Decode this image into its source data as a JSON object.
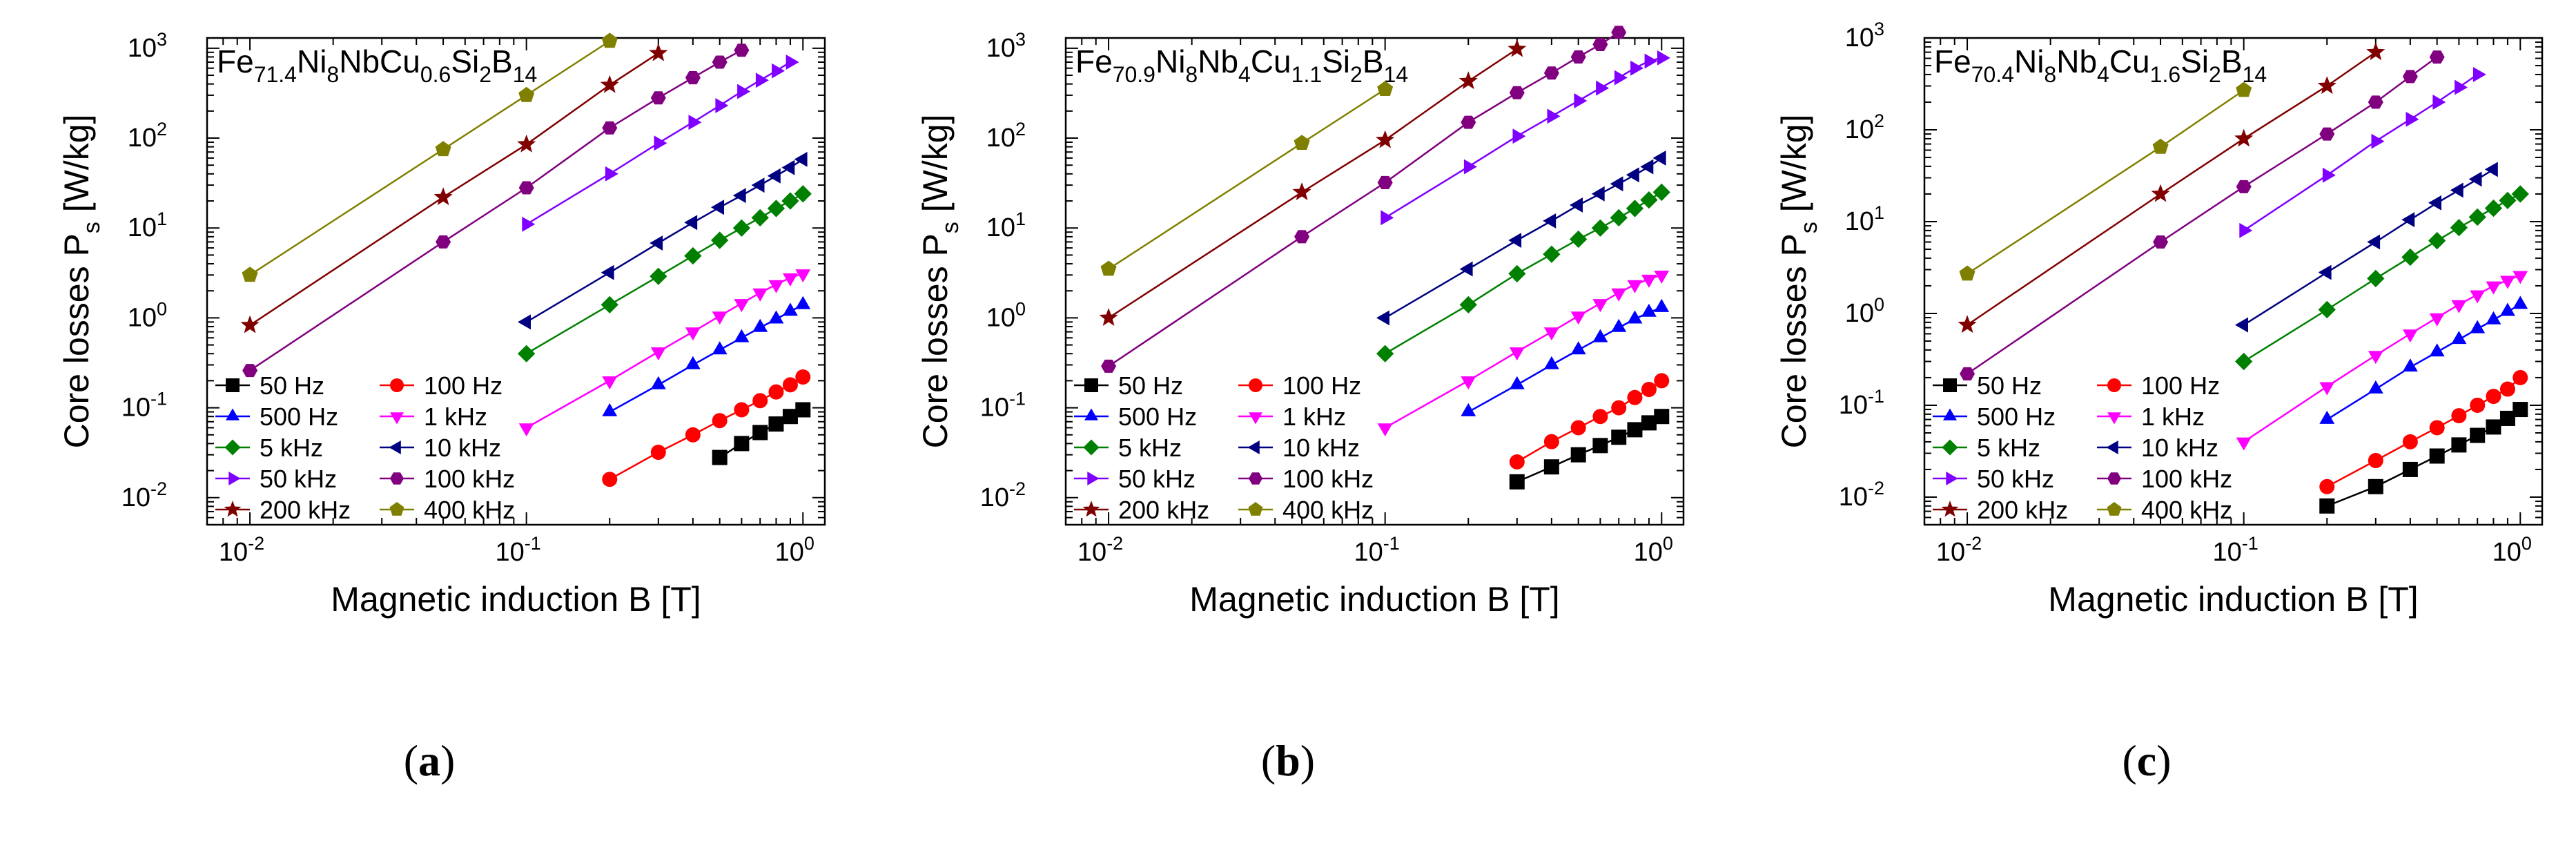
{
  "figure": {
    "captions": [
      {
        "open": "(",
        "label": "a",
        "close": ")"
      },
      {
        "open": "(",
        "label": "b",
        "close": ")"
      },
      {
        "open": "(",
        "label": "c",
        "close": ")"
      }
    ]
  },
  "legend_labels": [
    "50 Hz",
    "100 Hz",
    "500 Hz",
    "1 kHz",
    "5 kHz",
    "10 kHz",
    "50 kHz",
    "100 kHz",
    "200 kHz",
    "400 kHz"
  ],
  "series_styles": [
    {
      "color": "#000000",
      "marker": "square"
    },
    {
      "color": "#ff0000",
      "marker": "circle"
    },
    {
      "color": "#0000ff",
      "marker": "triangle-up"
    },
    {
      "color": "#ff00ff",
      "marker": "triangle-down"
    },
    {
      "color": "#008000",
      "marker": "diamond"
    },
    {
      "color": "#000080",
      "marker": "triangle-left"
    },
    {
      "color": "#8000ff",
      "marker": "triangle-right"
    },
    {
      "color": "#800080",
      "marker": "hexagon"
    },
    {
      "color": "#800000",
      "marker": "star"
    },
    {
      "color": "#808000",
      "marker": "pentagon"
    }
  ],
  "chart_data": [
    {
      "type": "scatter",
      "composition": [
        "Fe",
        "71.4",
        "Ni",
        "8",
        "Nb",
        "Cu",
        "0.6",
        "Si",
        "2",
        "B",
        "14"
      ],
      "xlabel": "Magnetic induction B [T]",
      "ylabel": "Core losses P",
      "ylabel_sub": "s",
      "ylabel_unit": "[W/kg]",
      "x_scale": "log",
      "y_scale": "log",
      "xlim": [
        0.007,
        1.2
      ],
      "ylim": [
        0.005,
        1300
      ],
      "legend_position": "bottom-left",
      "x_ticks": [
        {
          "base": "10",
          "exp": "-2"
        },
        {
          "base": "10",
          "exp": "-1"
        },
        {
          "base": "10",
          "exp": "0"
        }
      ],
      "y_ticks": [
        {
          "base": "10",
          "exp": "-2"
        },
        {
          "base": "10",
          "exp": "-1"
        },
        {
          "base": "10",
          "exp": "0"
        },
        {
          "base": "10",
          "exp": "1"
        },
        {
          "base": "10",
          "exp": "2"
        },
        {
          "base": "10",
          "exp": "3"
        }
      ],
      "series": [
        {
          "name": "50 Hz",
          "x": [
            0.5,
            0.6,
            0.7,
            0.8,
            0.9,
            1.0
          ],
          "y": [
            0.028,
            0.04,
            0.053,
            0.066,
            0.08,
            0.095
          ]
        },
        {
          "name": "100 Hz",
          "x": [
            0.2,
            0.3,
            0.4,
            0.5,
            0.6,
            0.7,
            0.8,
            0.9,
            1.0
          ],
          "y": [
            0.016,
            0.032,
            0.05,
            0.072,
            0.095,
            0.12,
            0.15,
            0.18,
            0.22
          ]
        },
        {
          "name": "500 Hz",
          "x": [
            0.2,
            0.3,
            0.4,
            0.5,
            0.6,
            0.7,
            0.8,
            0.9,
            1.0
          ],
          "y": [
            0.09,
            0.18,
            0.3,
            0.44,
            0.6,
            0.78,
            0.97,
            1.18,
            1.4
          ]
        },
        {
          "name": "1 kHz",
          "x": [
            0.1,
            0.2,
            0.3,
            0.4,
            0.5,
            0.6,
            0.7,
            0.8,
            0.9,
            1.0
          ],
          "y": [
            0.06,
            0.2,
            0.42,
            0.7,
            1.05,
            1.45,
            1.9,
            2.35,
            2.8,
            3.1
          ]
        },
        {
          "name": "5 kHz",
          "x": [
            0.1,
            0.2,
            0.3,
            0.4,
            0.5,
            0.6,
            0.7,
            0.8,
            0.9,
            1.0
          ],
          "y": [
            0.4,
            1.4,
            2.9,
            4.9,
            7.3,
            10,
            13,
            16.5,
            20,
            24
          ]
        },
        {
          "name": "10 kHz",
          "x": [
            0.1,
            0.2,
            0.3,
            0.4,
            0.5,
            0.6,
            0.7,
            0.8,
            0.9,
            1.0
          ],
          "y": [
            0.9,
            3.2,
            6.8,
            11.5,
            17,
            23,
            30,
            38,
            47,
            58
          ]
        },
        {
          "name": "50 kHz",
          "x": [
            0.1,
            0.2,
            0.3,
            0.4,
            0.5,
            0.6,
            0.7,
            0.8,
            0.9
          ],
          "y": [
            11,
            40,
            88,
            150,
            230,
            330,
            440,
            560,
            700
          ]
        },
        {
          "name": "100 kHz",
          "x": [
            0.01,
            0.05,
            0.1,
            0.2,
            0.3,
            0.4,
            0.5,
            0.6
          ],
          "y": [
            0.26,
            7,
            28,
            130,
            280,
            470,
            700,
            950
          ]
        },
        {
          "name": "200 kHz",
          "x": [
            0.01,
            0.05,
            0.1,
            0.2,
            0.3
          ],
          "y": [
            0.83,
            22,
            85,
            390,
            880
          ]
        },
        {
          "name": "400 kHz",
          "x": [
            0.01,
            0.05,
            0.1,
            0.2
          ],
          "y": [
            3,
            75,
            300,
            1200
          ]
        }
      ]
    },
    {
      "type": "scatter",
      "composition": [
        "Fe",
        "70.9",
        "Ni",
        "8",
        "Nb",
        "4",
        "Cu",
        "1.1",
        "Si",
        "2",
        "B",
        "14"
      ],
      "xlabel": "Magnetic induction B [T]",
      "ylabel": "Core losses P",
      "ylabel_sub": "s",
      "ylabel_unit": "[W/kg]",
      "x_scale": "log",
      "y_scale": "log",
      "xlim": [
        0.007,
        1.2
      ],
      "ylim": [
        0.005,
        1300
      ],
      "legend_position": "bottom-left",
      "x_ticks": [
        {
          "base": "10",
          "exp": "-2"
        },
        {
          "base": "10",
          "exp": "-1"
        },
        {
          "base": "10",
          "exp": "0"
        }
      ],
      "y_ticks": [
        {
          "base": "10",
          "exp": "-2"
        },
        {
          "base": "10",
          "exp": "-1"
        },
        {
          "base": "10",
          "exp": "0"
        },
        {
          "base": "10",
          "exp": "1"
        },
        {
          "base": "10",
          "exp": "2"
        },
        {
          "base": "10",
          "exp": "3"
        }
      ],
      "series": [
        {
          "name": "50 Hz",
          "x": [
            0.3,
            0.4,
            0.5,
            0.6,
            0.7,
            0.8,
            0.9,
            1.0
          ],
          "y": [
            0.015,
            0.022,
            0.03,
            0.038,
            0.047,
            0.057,
            0.068,
            0.08
          ]
        },
        {
          "name": "100 Hz",
          "x": [
            0.3,
            0.4,
            0.5,
            0.6,
            0.7,
            0.8,
            0.9,
            1.0
          ],
          "y": [
            0.025,
            0.042,
            0.06,
            0.08,
            0.1,
            0.13,
            0.16,
            0.2
          ]
        },
        {
          "name": "500 Hz",
          "x": [
            0.2,
            0.3,
            0.4,
            0.5,
            0.6,
            0.7,
            0.8,
            0.9,
            1.0
          ],
          "y": [
            0.09,
            0.18,
            0.3,
            0.44,
            0.6,
            0.78,
            0.97,
            1.15,
            1.3
          ]
        },
        {
          "name": "1 kHz",
          "x": [
            0.1,
            0.2,
            0.3,
            0.4,
            0.5,
            0.6,
            0.7,
            0.8,
            0.9,
            1.0
          ],
          "y": [
            0.06,
            0.2,
            0.42,
            0.7,
            1.05,
            1.45,
            1.9,
            2.35,
            2.7,
            3.0
          ]
        },
        {
          "name": "5 kHz",
          "x": [
            0.1,
            0.2,
            0.3,
            0.4,
            0.5,
            0.6,
            0.7,
            0.8,
            0.9,
            1.0
          ],
          "y": [
            0.4,
            1.4,
            3.1,
            5.1,
            7.5,
            10,
            13,
            16.5,
            20.5,
            25
          ]
        },
        {
          "name": "10 kHz",
          "x": [
            0.1,
            0.2,
            0.3,
            0.4,
            0.5,
            0.6,
            0.7,
            0.8,
            0.9,
            1.0
          ],
          "y": [
            1.0,
            3.5,
            7.3,
            12,
            18,
            24,
            31,
            39,
            48,
            60
          ]
        },
        {
          "name": "50 kHz",
          "x": [
            0.1,
            0.2,
            0.3,
            0.4,
            0.5,
            0.6,
            0.7,
            0.8,
            0.9,
            1.0
          ],
          "y": [
            13,
            48,
            105,
            175,
            260,
            360,
            470,
            600,
            720,
            780
          ]
        },
        {
          "name": "100 kHz",
          "x": [
            0.01,
            0.05,
            0.1,
            0.2,
            0.3,
            0.4,
            0.5,
            0.6,
            0.7
          ],
          "y": [
            0.29,
            8,
            32,
            150,
            320,
            530,
            800,
            1100,
            1500
          ]
        },
        {
          "name": "200 kHz",
          "x": [
            0.01,
            0.05,
            0.1,
            0.2,
            0.3
          ],
          "y": [
            1.0,
            25,
            95,
            430,
            980
          ]
        },
        {
          "name": "400 kHz",
          "x": [
            0.01,
            0.05,
            0.1
          ],
          "y": [
            3.5,
            88,
            350
          ]
        }
      ]
    },
    {
      "type": "scatter",
      "composition": [
        "Fe",
        "70.4",
        "Ni",
        "8",
        "Nb",
        "4",
        "Cu",
        "1.6",
        "Si",
        "2",
        "B",
        "14"
      ],
      "xlabel": "Magnetic induction B [T]",
      "ylabel": "Core losses P",
      "ylabel_sub": "s",
      "ylabel_unit": "[W/kg]",
      "x_scale": "log",
      "y_scale": "log",
      "xlim": [
        0.007,
        1.2
      ],
      "ylim": [
        0.005,
        1000
      ],
      "legend_position": "bottom-left",
      "x_ticks": [
        {
          "base": "10",
          "exp": "-2"
        },
        {
          "base": "10",
          "exp": "-1"
        },
        {
          "base": "10",
          "exp": "0"
        }
      ],
      "y_ticks": [
        {
          "base": "10",
          "exp": "-2"
        },
        {
          "base": "10",
          "exp": "-1"
        },
        {
          "base": "10",
          "exp": "0"
        },
        {
          "base": "10",
          "exp": "1"
        },
        {
          "base": "10",
          "exp": "2"
        },
        {
          "base": "10",
          "exp": "3"
        }
      ],
      "series": [
        {
          "name": "50 Hz",
          "x": [
            0.2,
            0.3,
            0.4,
            0.5,
            0.6,
            0.7,
            0.8,
            0.9,
            1.0
          ],
          "y": [
            0.008,
            0.013,
            0.02,
            0.028,
            0.037,
            0.047,
            0.058,
            0.072,
            0.09
          ]
        },
        {
          "name": "100 Hz",
          "x": [
            0.2,
            0.3,
            0.4,
            0.5,
            0.6,
            0.7,
            0.8,
            0.9,
            1.0
          ],
          "y": [
            0.013,
            0.025,
            0.04,
            0.057,
            0.077,
            0.1,
            0.125,
            0.15,
            0.2
          ]
        },
        {
          "name": "500 Hz",
          "x": [
            0.2,
            0.3,
            0.4,
            0.5,
            0.6,
            0.7,
            0.8,
            0.9,
            1.0
          ],
          "y": [
            0.07,
            0.15,
            0.26,
            0.38,
            0.52,
            0.68,
            0.85,
            1.05,
            1.25
          ]
        },
        {
          "name": "1 kHz",
          "x": [
            0.1,
            0.2,
            0.3,
            0.4,
            0.5,
            0.6,
            0.7,
            0.8,
            0.9,
            1.0
          ],
          "y": [
            0.04,
            0.16,
            0.35,
            0.6,
            0.9,
            1.25,
            1.6,
            2.0,
            2.3,
            2.6
          ]
        },
        {
          "name": "5 kHz",
          "x": [
            0.1,
            0.2,
            0.3,
            0.4,
            0.5,
            0.6,
            0.7,
            0.8,
            0.9,
            1.0
          ],
          "y": [
            0.3,
            1.1,
            2.4,
            4.1,
            6.2,
            8.6,
            11.2,
            14,
            17,
            20
          ]
        },
        {
          "name": "10 kHz",
          "x": [
            0.1,
            0.2,
            0.3,
            0.4,
            0.5,
            0.6,
            0.7,
            0.8
          ],
          "y": [
            0.75,
            2.8,
            6.0,
            10.5,
            16,
            22,
            29,
            37
          ]
        },
        {
          "name": "50 kHz",
          "x": [
            0.1,
            0.2,
            0.3,
            0.4,
            0.5,
            0.6,
            0.7
          ],
          "y": [
            8,
            32,
            75,
            130,
            200,
            290,
            400
          ]
        },
        {
          "name": "100 kHz",
          "x": [
            0.01,
            0.05,
            0.1,
            0.2,
            0.3,
            0.4,
            0.5
          ],
          "y": [
            0.22,
            6,
            24,
            90,
            200,
            380,
            620
          ]
        },
        {
          "name": "200 kHz",
          "x": [
            0.01,
            0.05,
            0.1,
            0.2,
            0.3
          ],
          "y": [
            0.75,
            20,
            80,
            300,
            700
          ]
        },
        {
          "name": "400 kHz",
          "x": [
            0.01,
            0.05,
            0.1
          ],
          "y": [
            2.7,
            65,
            270
          ]
        }
      ]
    }
  ]
}
